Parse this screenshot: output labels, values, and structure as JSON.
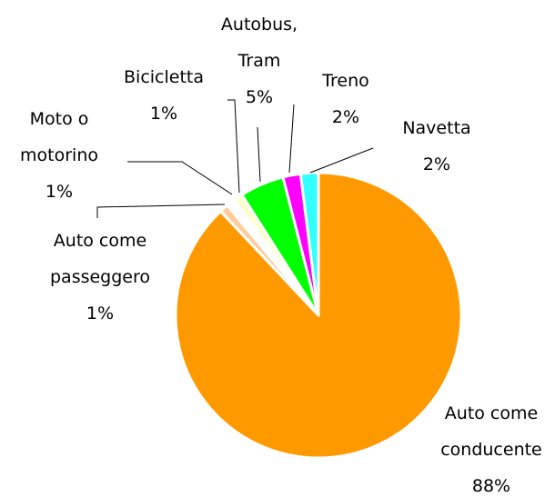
{
  "chart_data": {
    "type": "pie",
    "categories": [
      "Auto come conducente",
      "Auto come passeggero",
      "Moto o motorino",
      "Bicicletta",
      "Autobus, Tram",
      "Treno",
      "Navetta"
    ],
    "values": [
      88,
      1,
      1,
      1,
      5,
      2,
      2
    ],
    "value_labels": [
      "88%",
      "1%",
      "1%",
      "1%",
      "5%",
      "2%",
      "2%"
    ],
    "colors": [
      "#ff9900",
      "#ffcc99",
      "#ffffff",
      "#ffffcc",
      "#00ff00",
      "#ff00ff",
      "#33ffff"
    ]
  }
}
